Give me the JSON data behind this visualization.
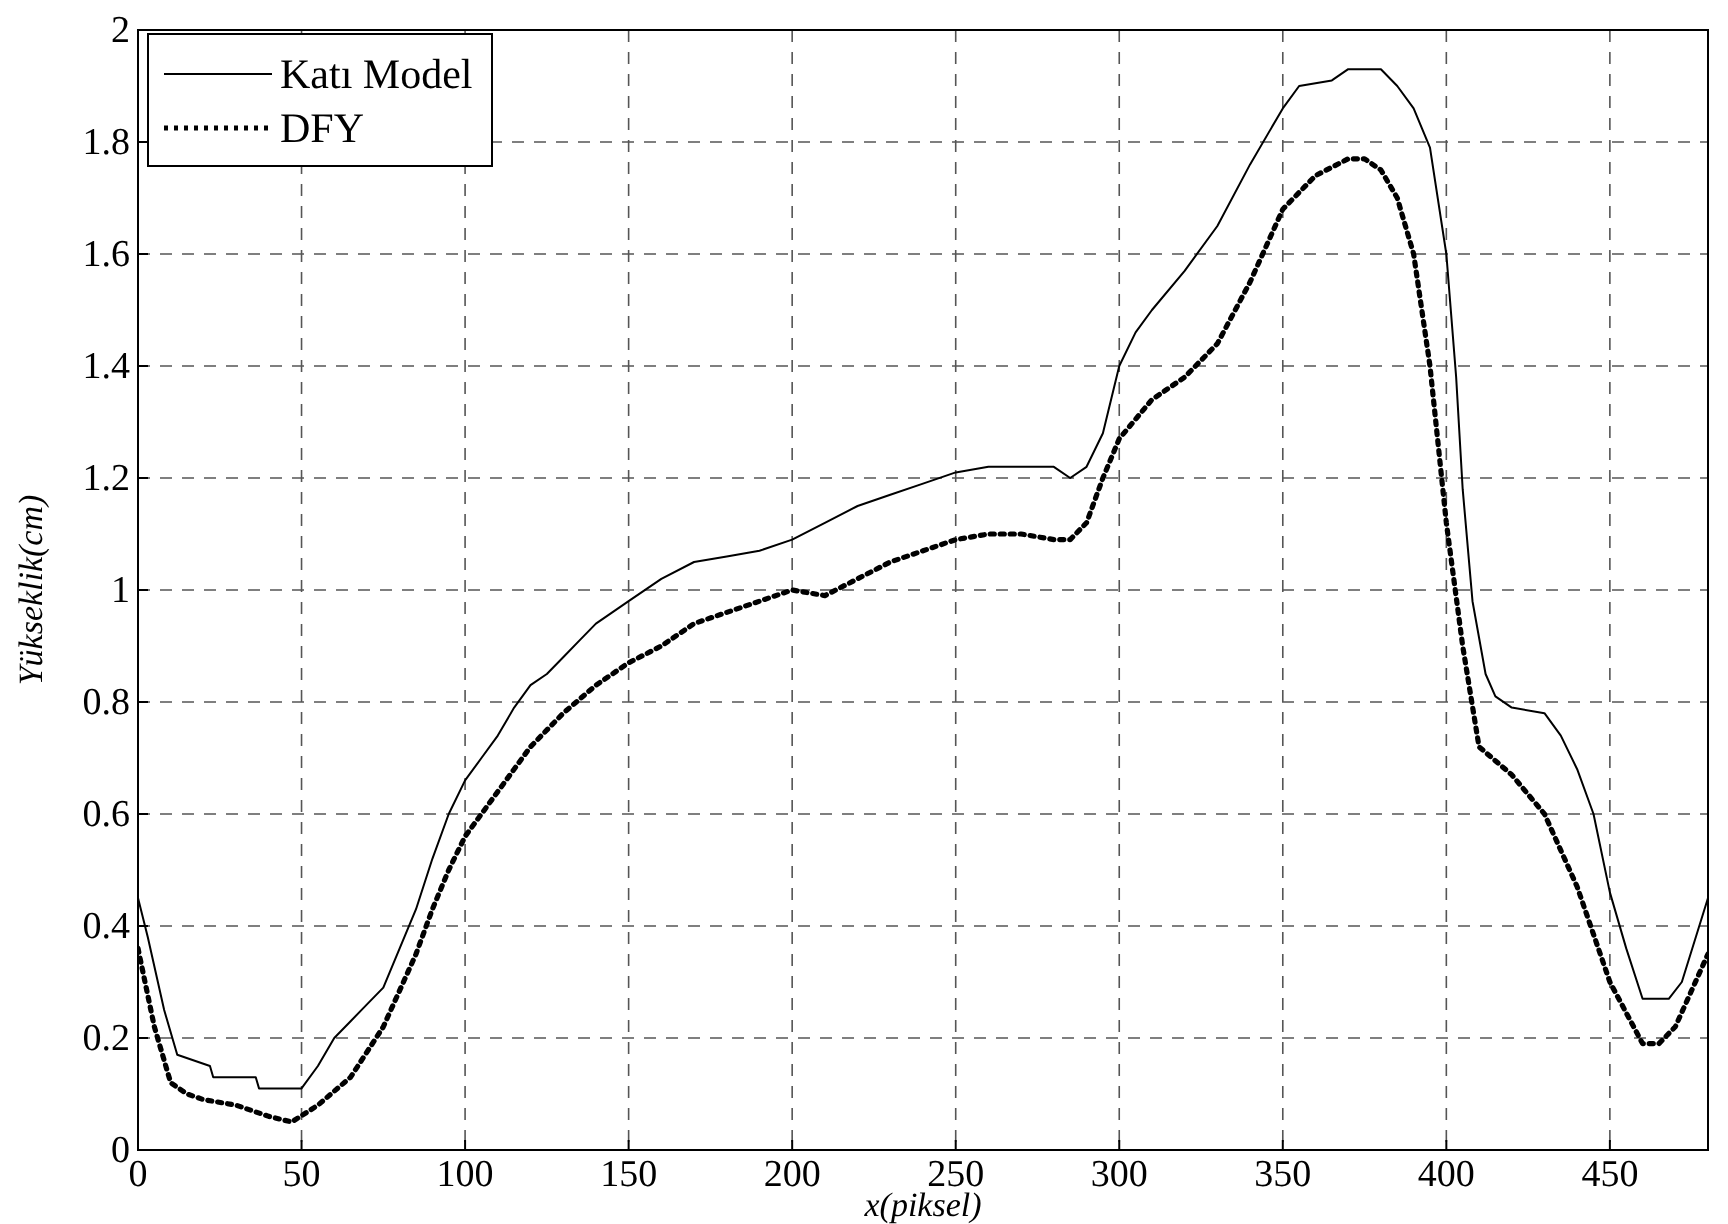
{
  "chart_data": {
    "type": "line",
    "xlabel": "x(piksel)",
    "ylabel": "Yükseklik(cm)",
    "xlim": [
      0,
      480
    ],
    "ylim": [
      0,
      2
    ],
    "xticks": [
      0,
      50,
      100,
      150,
      200,
      250,
      300,
      350,
      400,
      450
    ],
    "yticks": [
      0,
      0.2,
      0.4,
      0.6,
      0.8,
      1,
      1.2,
      1.4,
      1.6,
      1.8,
      2
    ],
    "grid": true,
    "legend": "top left",
    "series": [
      {
        "name": "Katı Model",
        "color": "#000000",
        "line_style": "solid",
        "x": [
          0,
          3,
          8,
          12,
          22,
          23,
          36,
          37,
          50,
          55,
          60,
          65,
          70,
          75,
          80,
          85,
          90,
          95,
          100,
          105,
          110,
          115,
          120,
          125,
          130,
          135,
          140,
          145,
          150,
          160,
          170,
          180,
          190,
          200,
          210,
          220,
          230,
          240,
          250,
          260,
          270,
          280,
          285,
          290,
          295,
          300,
          305,
          310,
          320,
          330,
          340,
          350,
          355,
          365,
          370,
          380,
          385,
          390,
          395,
          400,
          403,
          405,
          408,
          412,
          415,
          420,
          430,
          435,
          440,
          445,
          450,
          455,
          460,
          468,
          472,
          480
        ],
        "values": [
          0.45,
          0.38,
          0.25,
          0.17,
          0.15,
          0.13,
          0.13,
          0.11,
          0.11,
          0.15,
          0.2,
          0.23,
          0.26,
          0.29,
          0.36,
          0.43,
          0.52,
          0.6,
          0.66,
          0.7,
          0.74,
          0.79,
          0.83,
          0.85,
          0.88,
          0.91,
          0.94,
          0.96,
          0.98,
          1.02,
          1.05,
          1.06,
          1.07,
          1.09,
          1.12,
          1.15,
          1.17,
          1.19,
          1.21,
          1.22,
          1.22,
          1.22,
          1.2,
          1.22,
          1.28,
          1.4,
          1.46,
          1.5,
          1.57,
          1.65,
          1.76,
          1.86,
          1.9,
          1.91,
          1.93,
          1.93,
          1.9,
          1.86,
          1.79,
          1.6,
          1.38,
          1.18,
          0.98,
          0.85,
          0.81,
          0.79,
          0.78,
          0.74,
          0.68,
          0.6,
          0.46,
          0.36,
          0.27,
          0.27,
          0.3,
          0.45
        ]
      },
      {
        "name": "DFY",
        "color": "#000000",
        "line_style": "dotted",
        "x": [
          0,
          5,
          10,
          15,
          20,
          30,
          40,
          47,
          55,
          65,
          75,
          85,
          90,
          95,
          100,
          110,
          120,
          130,
          140,
          150,
          160,
          170,
          180,
          190,
          200,
          210,
          220,
          230,
          240,
          250,
          260,
          270,
          280,
          285,
          290,
          295,
          300,
          310,
          320,
          330,
          340,
          350,
          360,
          370,
          375,
          380,
          385,
          390,
          395,
          400,
          405,
          410,
          420,
          430,
          440,
          450,
          460,
          465,
          470,
          480
        ],
        "values": [
          0.36,
          0.22,
          0.12,
          0.1,
          0.09,
          0.08,
          0.06,
          0.05,
          0.08,
          0.13,
          0.22,
          0.35,
          0.43,
          0.5,
          0.56,
          0.64,
          0.72,
          0.78,
          0.83,
          0.87,
          0.9,
          0.94,
          0.96,
          0.98,
          1.0,
          0.99,
          1.02,
          1.05,
          1.07,
          1.09,
          1.1,
          1.1,
          1.09,
          1.09,
          1.12,
          1.2,
          1.27,
          1.34,
          1.38,
          1.44,
          1.55,
          1.68,
          1.74,
          1.77,
          1.77,
          1.75,
          1.7,
          1.6,
          1.4,
          1.12,
          0.9,
          0.72,
          0.67,
          0.6,
          0.47,
          0.3,
          0.19,
          0.19,
          0.22,
          0.35
        ]
      }
    ]
  }
}
